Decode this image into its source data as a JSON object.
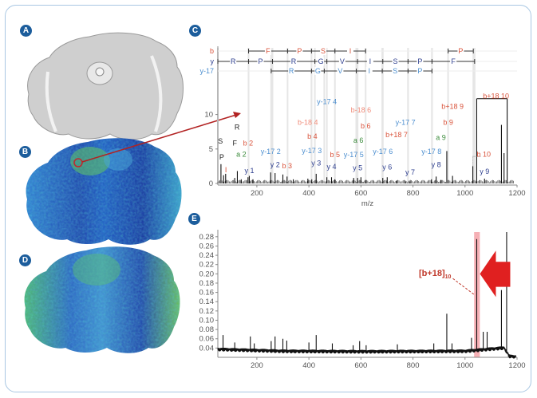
{
  "panels": {
    "A": "A",
    "B": "B",
    "C": "C",
    "D": "D",
    "E": "E"
  },
  "colors": {
    "b": "#d9533b",
    "b_minus": "#f08a78",
    "y": "#2e3f8f",
    "y17": "#4d8fd0",
    "a": "#3a8a3a",
    "imm": "#222222",
    "highlight": "#e8505b",
    "arrow": "#b22222",
    "frame": "#a9c7e3"
  },
  "chart_data": [
    {
      "id": "C",
      "type": "bar",
      "xlabel": "m/z",
      "ylabel": "",
      "xlim": [
        50,
        1200
      ],
      "ylim": [
        0,
        12.5
      ],
      "xticks": [
        200,
        400,
        600,
        800,
        1000,
        1200
      ],
      "yticks": [
        0,
        5,
        10
      ],
      "grid": false,
      "sequence_rows": [
        {
          "label": "b",
          "color": "#d9533b",
          "ticks": [
            168,
            318,
            410,
            500,
            618
          ],
          "residues": [
            "F",
            "P",
            "S",
            "I"
          ],
          "extra_ticks": [
            935,
            1032
          ],
          "extra_residues": [
            "P"
          ]
        },
        {
          "label": "y",
          "color": "#2e3f8f",
          "ticks": [
            50,
            168,
            260,
            423,
            469,
            587,
            684,
            781,
            873,
            1037
          ],
          "residues": [
            "R",
            "P",
            "R",
            "G",
            "V",
            "I",
            "S",
            "P",
            "F"
          ]
        },
        {
          "label": "y-17",
          "color": "#4d8fd0",
          "ticks": [
            255,
            410,
            459,
            582,
            682,
            781,
            873
          ],
          "residues": [
            "R",
            "G",
            "V",
            "I",
            "S",
            "P"
          ]
        }
      ],
      "peaks": [
        [
          62,
          2.8
        ],
        [
          72,
          1.2
        ],
        [
          80,
          1.4
        ],
        [
          115,
          0.8
        ],
        [
          125,
          1.8
        ],
        [
          140,
          0.6
        ],
        [
          166,
          0.9
        ],
        [
          171,
          1.1
        ],
        [
          185,
          0.6
        ],
        [
          253,
          1.6
        ],
        [
          270,
          1.5
        ],
        [
          300,
          1.3
        ],
        [
          316,
          1.0
        ],
        [
          340,
          0.6
        ],
        [
          396,
          0.7
        ],
        [
          411,
          0.6
        ],
        [
          428,
          1.4
        ],
        [
          469,
          0.9
        ],
        [
          487,
          0.9
        ],
        [
          500,
          0.6
        ],
        [
          572,
          0.8
        ],
        [
          587,
          0.8
        ],
        [
          600,
          0.9
        ],
        [
          618,
          0.5
        ],
        [
          684,
          0.8
        ],
        [
          701,
          0.9
        ],
        [
          737,
          0.4
        ],
        [
          771,
          0.3
        ],
        [
          789,
          0.3
        ],
        [
          871,
          0.6
        ],
        [
          889,
          1.0
        ],
        [
          907,
          0.5
        ],
        [
          930,
          4.7
        ],
        [
          952,
          1.1
        ],
        [
          1030,
          2.5
        ],
        [
          1045,
          12.3
        ],
        [
          1075,
          0.7
        ],
        [
          1140,
          8.5
        ],
        [
          1150,
          4.4
        ],
        [
          1162,
          12.3
        ]
      ],
      "annotations": [
        {
          "text": "S",
          "mz": 60,
          "y": 5.8,
          "series": "imm"
        },
        {
          "text": "P",
          "mz": 65,
          "y": 3.5,
          "series": "imm"
        },
        {
          "text": "I",
          "mz": 81,
          "y": 1.6,
          "series": "b"
        },
        {
          "text": "F",
          "mz": 115,
          "y": 5.5,
          "series": "imm"
        },
        {
          "text": "R",
          "mz": 124,
          "y": 7.8,
          "series": "imm"
        },
        {
          "text": "a 2",
          "mz": 140,
          "y": 3.9,
          "series": "a"
        },
        {
          "text": "b 2",
          "mz": 166,
          "y": 5.5,
          "series": "b"
        },
        {
          "text": "y 1",
          "mz": 171,
          "y": 1.5,
          "series": "y"
        },
        {
          "text": "y-17 2",
          "mz": 253,
          "y": 4.3,
          "series": "y17"
        },
        {
          "text": "y 2",
          "mz": 270,
          "y": 2.4,
          "series": "y"
        },
        {
          "text": "b 3",
          "mz": 316,
          "y": 2.2,
          "series": "b"
        },
        {
          "text": "b-18 4",
          "mz": 396,
          "y": 8.5,
          "series": "b_minus"
        },
        {
          "text": "b 4",
          "mz": 413,
          "y": 6.5,
          "series": "b"
        },
        {
          "text": "y-17 3",
          "mz": 411,
          "y": 4.4,
          "series": "y17"
        },
        {
          "text": "y 3",
          "mz": 428,
          "y": 2.6,
          "series": "y"
        },
        {
          "text": "y-17 4",
          "mz": 469,
          "y": 11.5,
          "series": "y17"
        },
        {
          "text": "y 4",
          "mz": 487,
          "y": 2.1,
          "series": "y"
        },
        {
          "text": "b 5",
          "mz": 500,
          "y": 3.8,
          "series": "b"
        },
        {
          "text": "y-17 5",
          "mz": 572,
          "y": 3.8,
          "series": "y17"
        },
        {
          "text": "y 5",
          "mz": 587,
          "y": 1.9,
          "series": "y"
        },
        {
          "text": "a 6",
          "mz": 590,
          "y": 5.9,
          "series": "a"
        },
        {
          "text": "b-18 6",
          "mz": 600,
          "y": 10.3,
          "series": "b_minus"
        },
        {
          "text": "b 6",
          "mz": 618,
          "y": 8.0,
          "series": "b"
        },
        {
          "text": "y-17 6",
          "mz": 684,
          "y": 4.3,
          "series": "y17"
        },
        {
          "text": "y 6",
          "mz": 701,
          "y": 2.0,
          "series": "y"
        },
        {
          "text": "b+18 7",
          "mz": 737,
          "y": 6.7,
          "series": "b"
        },
        {
          "text": "y-17 7",
          "mz": 771,
          "y": 8.5,
          "series": "y17"
        },
        {
          "text": "y 7",
          "mz": 789,
          "y": 1.3,
          "series": "y"
        },
        {
          "text": "y-17 8",
          "mz": 871,
          "y": 4.3,
          "series": "y17"
        },
        {
          "text": "y 8",
          "mz": 889,
          "y": 2.4,
          "series": "y"
        },
        {
          "text": "a 9",
          "mz": 907,
          "y": 6.3,
          "series": "a"
        },
        {
          "text": "b 9",
          "mz": 935,
          "y": 8.5,
          "series": "b"
        },
        {
          "text": "b+18 9",
          "mz": 952,
          "y": 10.8,
          "series": "b"
        },
        {
          "text": "b 10",
          "mz": 1072,
          "y": 3.9,
          "series": "b"
        },
        {
          "text": "y 9",
          "mz": 1075,
          "y": 1.4,
          "series": "y"
        },
        {
          "text": "b+18 10",
          "mz": 1119,
          "y": 12.3,
          "series": "b"
        }
      ]
    },
    {
      "id": "E",
      "type": "line",
      "xlabel": "",
      "ylabel": "",
      "xlim": [
        50,
        1200
      ],
      "ylim": [
        0.02,
        0.29
      ],
      "xticks": [
        200,
        400,
        600,
        800,
        1000,
        1200
      ],
      "yticks": [
        0.04,
        0.06,
        0.08,
        0.1,
        0.12,
        0.14,
        0.16,
        0.18,
        0.2,
        0.22,
        0.24,
        0.26,
        0.28
      ],
      "ytick_labels": [
        "0.04",
        "0.06",
        "0.08",
        "0.10",
        "0.12",
        "0.14",
        "0.16",
        "0.18",
        "0.20",
        "0.22",
        "0.24",
        "0.26",
        "0.28"
      ],
      "grid": false,
      "baseline": [
        [
          50,
          0.037
        ],
        [
          300,
          0.033
        ],
        [
          600,
          0.032
        ],
        [
          1000,
          0.033
        ],
        [
          1150,
          0.04
        ],
        [
          1170,
          0.022
        ],
        [
          1200,
          0.021
        ]
      ],
      "peaks": [
        [
          70,
          0.068
        ],
        [
          115,
          0.052
        ],
        [
          175,
          0.065
        ],
        [
          190,
          0.05
        ],
        [
          255,
          0.055
        ],
        [
          270,
          0.065
        ],
        [
          300,
          0.06
        ],
        [
          315,
          0.056
        ],
        [
          400,
          0.052
        ],
        [
          428,
          0.068
        ],
        [
          490,
          0.05
        ],
        [
          570,
          0.046
        ],
        [
          595,
          0.055
        ],
        [
          620,
          0.046
        ],
        [
          740,
          0.048
        ],
        [
          880,
          0.05
        ],
        [
          930,
          0.114
        ],
        [
          950,
          0.05
        ],
        [
          1025,
          0.062
        ],
        [
          1045,
          0.275
        ],
        [
          1070,
          0.075
        ],
        [
          1085,
          0.075
        ],
        [
          1140,
          0.165
        ],
        [
          1160,
          0.29
        ]
      ],
      "highlight_range": [
        1035,
        1057
      ],
      "annotation": {
        "text": "[b+18]",
        "subscript": "10",
        "mz": 1045
      }
    }
  ]
}
